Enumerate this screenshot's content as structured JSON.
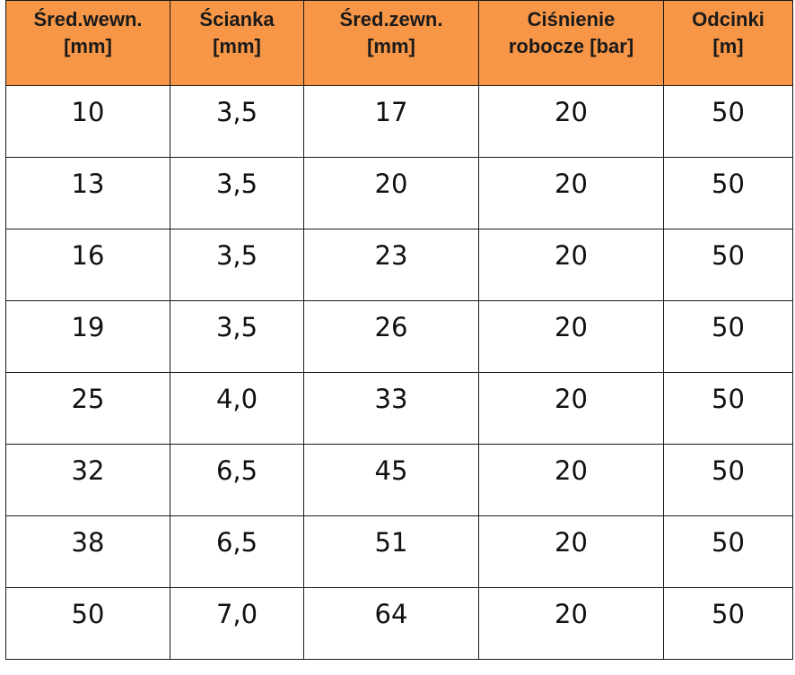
{
  "table": {
    "headers": [
      [
        "Śred.wewn.",
        "[mm]"
      ],
      [
        "Ścianka",
        "[mm]"
      ],
      [
        "Śred.zewn.",
        "[mm]"
      ],
      [
        "Ciśnienie",
        "robocze [bar]"
      ],
      [
        "Odcinki",
        "[m]"
      ]
    ],
    "rows": [
      [
        "10",
        "3,5",
        "17",
        "20",
        "50"
      ],
      [
        "13",
        "3,5",
        "20",
        "20",
        "50"
      ],
      [
        "16",
        "3,5",
        "23",
        "20",
        "50"
      ],
      [
        "19",
        "3,5",
        "26",
        "20",
        "50"
      ],
      [
        "25",
        "4,0",
        "33",
        "20",
        "50"
      ],
      [
        "32",
        "6,5",
        "45",
        "20",
        "50"
      ],
      [
        "38",
        "6,5",
        "51",
        "20",
        "50"
      ],
      [
        "50",
        "7,0",
        "64",
        "20",
        "50"
      ]
    ]
  },
  "colors": {
    "header_bg": "#f79646",
    "border": "#1a1a1a"
  }
}
